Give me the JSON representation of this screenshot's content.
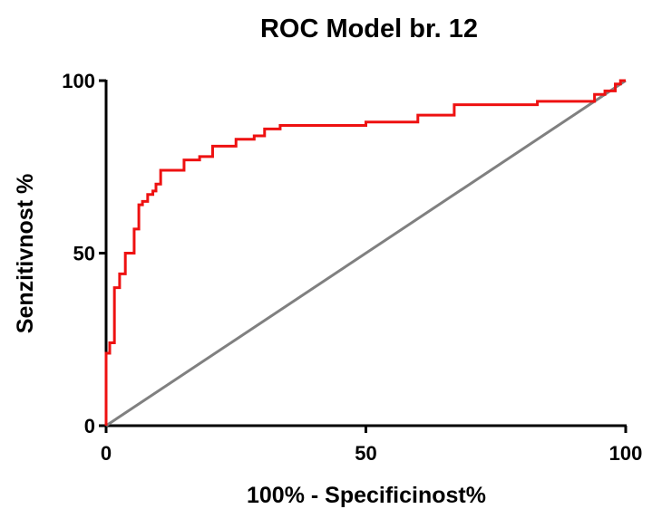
{
  "chart_data": {
    "type": "line",
    "title": "ROC Model br. 12",
    "x_label": "100% - Specificinost%",
    "y_label": "Senzitivnost %",
    "xlim": [
      0,
      100
    ],
    "ylim": [
      0,
      100
    ],
    "xticks": [
      0,
      50,
      100
    ],
    "yticks": [
      0,
      50,
      100
    ],
    "series": [
      {
        "color": "#ee1111",
        "x": [
          0,
          0,
          0.7,
          0.7,
          1.6,
          1.6,
          2.6,
          2.6,
          3.7,
          3.7,
          5.4,
          5.4,
          6.3,
          6.3,
          7,
          7,
          8,
          8,
          9,
          9,
          9.6,
          9.6,
          10.5,
          10.5,
          15,
          15,
          18,
          18,
          20.5,
          20.5,
          25,
          25,
          28.5,
          28.5,
          30.5,
          30.5,
          33.5,
          33.5,
          50,
          50,
          60,
          60,
          67,
          67,
          83,
          83,
          94,
          94,
          96,
          96,
          98,
          98,
          99,
          99,
          100
        ],
        "values": [
          0,
          21,
          21,
          24,
          24,
          40,
          40,
          44,
          44,
          50,
          50,
          57,
          57,
          64,
          64,
          65,
          65,
          67,
          67,
          68,
          68,
          70,
          70,
          74,
          74,
          77,
          77,
          78,
          78,
          81,
          81,
          83,
          83,
          84,
          84,
          86,
          86,
          87,
          87,
          88,
          88,
          90,
          90,
          93,
          93,
          94,
          94,
          96,
          96,
          97,
          97,
          99,
          99,
          100,
          100
        ]
      },
      {
        "color": "#808080",
        "x": [
          0,
          100
        ],
        "values": [
          0,
          100
        ]
      }
    ]
  }
}
